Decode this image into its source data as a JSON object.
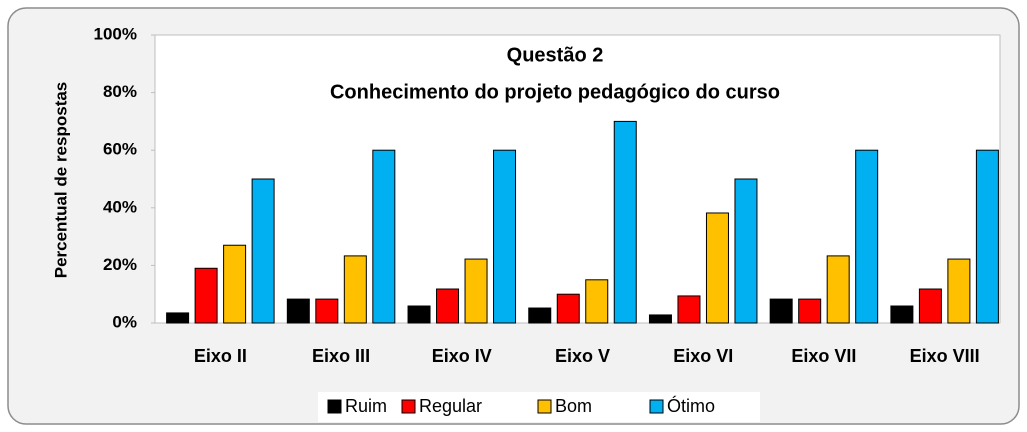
{
  "chart_data": {
    "type": "bar",
    "title": [
      "Questão 2",
      "Conhecimento do projeto pedagógico do curso"
    ],
    "ylabel": "Percentual de respostas",
    "categories": [
      "Eixo II",
      "Eixo III",
      "Eixo IV",
      "Eixo V",
      "Eixo VI",
      "Eixo VII",
      "Eixo VIII"
    ],
    "series": [
      {
        "name": "Ruim",
        "color": "#000000",
        "values": [
          3.5,
          8.3,
          5.9,
          5.2,
          2.8,
          8.3,
          5.9
        ]
      },
      {
        "name": "Regular",
        "color": "#ff0000",
        "values": [
          19,
          8.3,
          11.8,
          10,
          9.4,
          8.3,
          11.8
        ]
      },
      {
        "name": "Bom",
        "color": "#ffc000",
        "values": [
          27,
          23.3,
          22.2,
          15,
          38.2,
          23.3,
          22.2
        ]
      },
      {
        "name": "Ótimo",
        "color": "#00b0f0",
        "values": [
          50,
          60,
          60,
          70,
          50,
          60,
          60
        ]
      }
    ],
    "ylim": [
      0,
      100
    ],
    "yticks": [
      {
        "value": 0,
        "label": "0%"
      },
      {
        "value": 20,
        "label": "20%"
      },
      {
        "value": 40,
        "label": "40%"
      },
      {
        "value": 60,
        "label": "60%"
      },
      {
        "value": 80,
        "label": "80%"
      },
      {
        "value": 100,
        "label": "100%"
      }
    ],
    "legend": "bottom"
  }
}
